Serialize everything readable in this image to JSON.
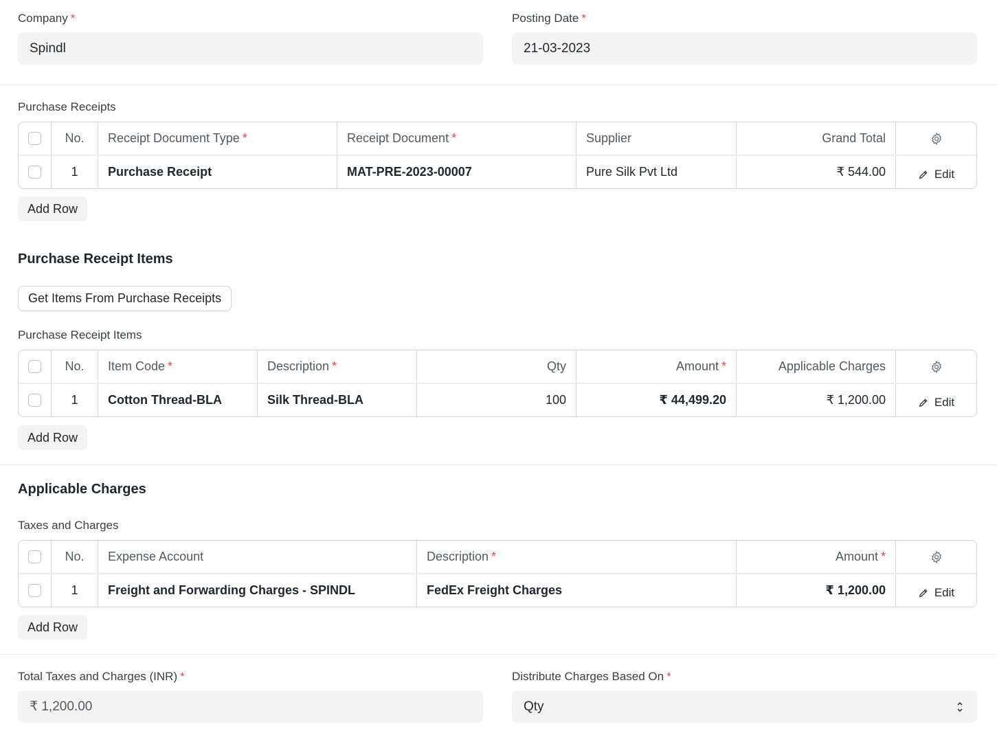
{
  "company": {
    "label": "Company",
    "value": "Spindl"
  },
  "posting_date": {
    "label": "Posting Date",
    "value": "21-03-2023"
  },
  "purchase_receipts": {
    "label": "Purchase Receipts",
    "headers": {
      "no": "No.",
      "type": "Receipt Document Type",
      "doc": "Receipt Document",
      "supplier": "Supplier",
      "total": "Grand Total"
    },
    "rows": [
      {
        "no": "1",
        "type": "Purchase Receipt",
        "doc": "MAT-PRE-2023-00007",
        "supplier": "Pure Silk Pvt Ltd",
        "total": "₹ 544.00",
        "edit": "Edit"
      }
    ],
    "add_row": "Add Row"
  },
  "items_section": {
    "title": "Purchase Receipt Items",
    "get_items_button": "Get Items From Purchase Receipts",
    "label": "Purchase Receipt Items",
    "headers": {
      "no": "No.",
      "item_code": "Item Code",
      "description": "Description",
      "qty": "Qty",
      "amount": "Amount",
      "charges": "Applicable Charges"
    },
    "rows": [
      {
        "no": "1",
        "item_code": "Cotton Thread-BLA",
        "description": "Silk Thread-BLA",
        "qty": "100",
        "amount": "₹ 44,499.20",
        "charges": "₹ 1,200.00",
        "edit": "Edit"
      }
    ],
    "add_row": "Add Row"
  },
  "charges_section": {
    "title": "Applicable Charges",
    "label": "Taxes and Charges",
    "headers": {
      "no": "No.",
      "account": "Expense Account",
      "description": "Description",
      "amount": "Amount"
    },
    "rows": [
      {
        "no": "1",
        "account": "Freight and Forwarding Charges - SPINDL",
        "description": "FedEx Freight Charges",
        "amount": "₹ 1,200.00",
        "edit": "Edit"
      }
    ],
    "add_row": "Add Row"
  },
  "total_taxes": {
    "label": "Total Taxes and Charges (INR)",
    "value": "₹ 1,200.00"
  },
  "distribute": {
    "label": "Distribute Charges Based On",
    "value": "Qty"
  },
  "colors": {
    "required": "#e24c4c",
    "field_bg": "#f3f3f3",
    "border": "#d1d8dd"
  }
}
